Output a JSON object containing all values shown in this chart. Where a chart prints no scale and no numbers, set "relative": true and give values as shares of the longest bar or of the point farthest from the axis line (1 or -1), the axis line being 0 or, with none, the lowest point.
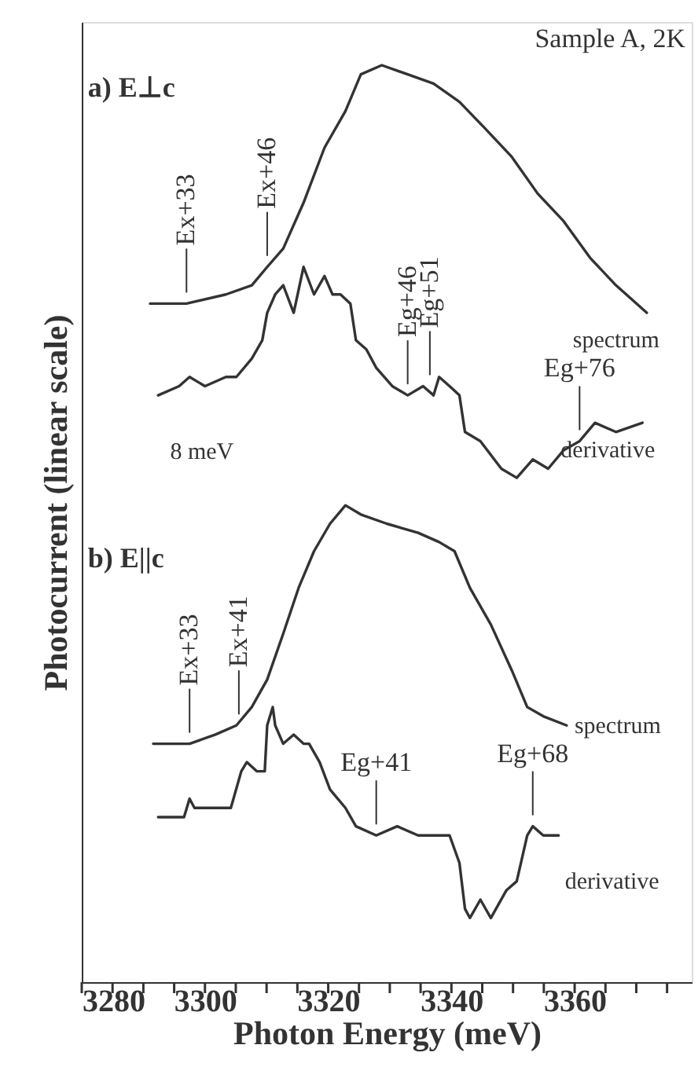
{
  "chart_data": {
    "type": "line",
    "relative": true,
    "xlabel": "Photon Energy (meV)",
    "ylabel": "Photocurrent (linear scale)",
    "xlim": [
      3280,
      3379
    ],
    "xticks": [
      3280,
      {
        "value": 3285,
        "label": null
      },
      {
        "value": 3290,
        "label": null
      },
      {
        "value": 3295,
        "label": null
      },
      3300,
      {
        "value": 3305,
        "label": null
      },
      {
        "value": 3310,
        "label": null
      },
      {
        "value": 3315,
        "label": null
      },
      3320,
      {
        "value": 3325,
        "label": null
      },
      {
        "value": 3330,
        "label": null
      },
      {
        "value": 3335,
        "label": null
      },
      3340,
      {
        "value": 3345,
        "label": null
      },
      {
        "value": 3350,
        "label": null
      },
      {
        "value": 3355,
        "label": null
      },
      3360,
      {
        "value": 3365,
        "label": null
      },
      {
        "value": 3370,
        "label": null
      },
      {
        "value": 3375,
        "label": null
      }
    ],
    "series": [
      {
        "name": "spectrum",
        "color": "#333333",
        "x": [
          3291.1,
          3297.0,
          3303.4,
          3307.6,
          3310.1,
          3312.7,
          3316.0,
          3319.4,
          3322.8,
          3325.3,
          3328.7,
          3332.9,
          3337.1,
          3341.3,
          3345.6,
          3349.8,
          3354.0,
          3358.2,
          3362.5,
          3366.7,
          3371.7
        ],
        "values": [
          0.74,
          0.74,
          0.75,
          0.76,
          0.78,
          0.8,
          0.85,
          0.91,
          0.95,
          0.99,
          1.0,
          0.99,
          0.98,
          0.96,
          0.93,
          0.9,
          0.86,
          0.83,
          0.79,
          0.76,
          0.73
        ]
      },
      {
        "name": "derivative",
        "color": "#333333",
        "x": [
          3292.4,
          3295.8,
          3297.5,
          3300.0,
          3303.4,
          3305.1,
          3307.6,
          3309.3,
          3310.1,
          3311.4,
          3312.7,
          3314.4,
          3316.0,
          3317.7,
          3319.4,
          3320.7,
          3322.0,
          3323.6,
          3324.5,
          3326.2,
          3327.8,
          3330.4,
          3332.9,
          3335.4,
          3337.1,
          3338.0,
          3339.7,
          3341.3,
          3342.2,
          3344.7,
          3348.1,
          3350.6,
          3353.2,
          3355.7,
          3358.2,
          3360.8,
          3363.3,
          3366.7,
          3371.0
        ],
        "values": [
          0.64,
          0.65,
          0.66,
          0.65,
          0.66,
          0.66,
          0.68,
          0.7,
          0.73,
          0.75,
          0.76,
          0.73,
          0.78,
          0.75,
          0.77,
          0.75,
          0.75,
          0.74,
          0.7,
          0.69,
          0.67,
          0.65,
          0.64,
          0.65,
          0.64,
          0.66,
          0.65,
          0.64,
          0.6,
          0.59,
          0.56,
          0.55,
          0.57,
          0.56,
          0.58,
          0.59,
          0.61,
          0.6,
          0.61
        ]
      },
      {
        "name": "spectrum",
        "color": "#333333",
        "x": [
          3291.6,
          3297.0,
          3297.5,
          3301.7,
          3305.1,
          3307.6,
          3310.1,
          3312.7,
          3315.2,
          3317.7,
          3320.3,
          3322.8,
          3325.3,
          3329.5,
          3334.6,
          3338.0,
          3340.5,
          3343.0,
          3346.4,
          3349.8,
          3352.3,
          3354.9,
          3358.7
        ],
        "values": [
          0.26,
          0.26,
          0.26,
          0.27,
          0.28,
          0.3,
          0.33,
          0.38,
          0.43,
          0.47,
          0.5,
          0.52,
          0.51,
          0.5,
          0.49,
          0.48,
          0.47,
          0.43,
          0.39,
          0.34,
          0.3,
          0.29,
          0.28
        ]
      },
      {
        "name": "derivative",
        "color": "#333333",
        "x": [
          3292.4,
          3296.6,
          3297.5,
          3298.3,
          3301.7,
          3304.2,
          3305.9,
          3306.8,
          3308.4,
          3309.7,
          3310.1,
          3311.0,
          3311.4,
          3312.7,
          3314.4,
          3316.0,
          3316.9,
          3318.6,
          3320.3,
          3322.8,
          3324.5,
          3327.8,
          3331.2,
          3334.6,
          3338.0,
          3339.7,
          3341.3,
          3342.2,
          3343.0,
          3344.7,
          3346.4,
          3348.9,
          3350.6,
          3352.3,
          3353.2,
          3354.9,
          3357.4
        ],
        "values": [
          0.18,
          0.18,
          0.2,
          0.19,
          0.19,
          0.19,
          0.23,
          0.24,
          0.23,
          0.23,
          0.28,
          0.3,
          0.28,
          0.26,
          0.27,
          0.26,
          0.26,
          0.24,
          0.21,
          0.19,
          0.17,
          0.16,
          0.17,
          0.16,
          0.16,
          0.16,
          0.13,
          0.08,
          0.07,
          0.09,
          0.07,
          0.1,
          0.11,
          0.16,
          0.17,
          0.16,
          0.16
        ]
      }
    ],
    "annotations": [
      "Sample A, 2K",
      "a) E⊥c",
      "b) E||c",
      "8 meV",
      {
        "text": "Ex+33",
        "x": 3297.0,
        "y": 0.74
      },
      {
        "text": "Ex+46",
        "x": 3310.1,
        "y": 0.78
      },
      {
        "text": "Eg+46",
        "x": 3332.9,
        "y": 0.64
      },
      {
        "text": "Eg+51",
        "x": 3336.5,
        "y": 0.65
      },
      {
        "text": "Eg+76",
        "x": 3360.8,
        "y": 0.59
      },
      {
        "text": "Ex+33",
        "x": 3297.5,
        "y": 0.26
      },
      {
        "text": "Ex+41",
        "x": 3305.5,
        "y": 0.28
      },
      {
        "text": "Eg+41",
        "x": 3327.8,
        "y": 0.16
      },
      {
        "text": "Eg+68",
        "x": 3353.2,
        "y": 0.17
      }
    ]
  }
}
